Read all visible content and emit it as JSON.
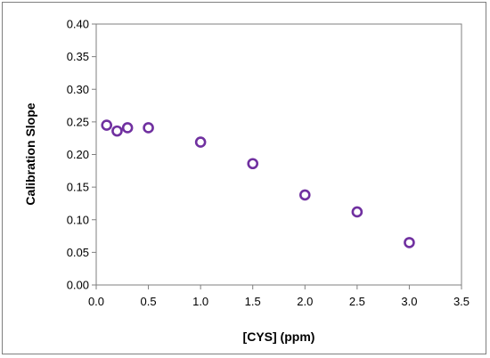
{
  "chart_data": {
    "type": "scatter",
    "title": "",
    "xlabel": "[CYS] (ppm)",
    "ylabel": "Calibration Slope",
    "xlim": [
      0,
      3.5
    ],
    "ylim": [
      0,
      0.4
    ],
    "x_ticks": [
      "0.0",
      "0.5",
      "1.0",
      "1.5",
      "2.0",
      "2.5",
      "3.0",
      "3.5"
    ],
    "y_ticks": [
      "0.00",
      "0.05",
      "0.10",
      "0.15",
      "0.20",
      "0.25",
      "0.30",
      "0.35",
      "0.40"
    ],
    "grid": false,
    "legend": "none",
    "marker": "hollow-circle",
    "marker_color": "#7030a0",
    "series": [
      {
        "x": [
          0.1,
          0.2,
          0.3,
          0.5,
          1.0,
          1.5,
          2.0,
          2.5,
          3.0
        ],
        "y": [
          0.245,
          0.236,
          0.241,
          0.241,
          0.219,
          0.186,
          0.138,
          0.112,
          0.065
        ]
      }
    ]
  }
}
